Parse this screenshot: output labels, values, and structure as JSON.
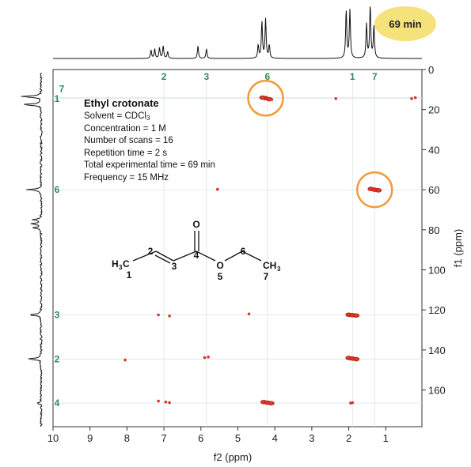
{
  "chart_data": {
    "type": "scatter",
    "xlabel": "f2 (ppm)",
    "ylabel": "f1 (ppm)",
    "xlim": [
      10,
      0
    ],
    "ylim": [
      0,
      180
    ],
    "x_ticks": [
      10,
      9,
      8,
      7,
      6,
      5,
      4,
      3,
      2,
      1
    ],
    "y_ticks": [
      0,
      20,
      40,
      60,
      80,
      100,
      120,
      140,
      160
    ],
    "grid": false,
    "badge": "69 min",
    "title": "Ethyl crotonate",
    "info": {
      "solvent_prefix": "Solvent = CDCl",
      "solvent_sub": "3",
      "lines": [
        "Concentration = 1 M",
        "Number of scans = 16",
        "Repetition time = 2 s",
        "Total experimental time = 69 min",
        "Frequency = 15 MHz"
      ]
    },
    "top_assignments": [
      {
        "label": "2",
        "x": 7.0
      },
      {
        "label": "3",
        "x": 5.85
      },
      {
        "label": "6",
        "x": 4.2
      },
      {
        "label": "1",
        "x": 1.9
      },
      {
        "label": "7",
        "x": 1.3
      }
    ],
    "left_assignments": [
      {
        "label": "1",
        "y": 14.5
      },
      {
        "label": "7",
        "y": 14.0
      },
      {
        "label": "6",
        "y": 60
      },
      {
        "label": "3",
        "y": 122.5
      },
      {
        "label": "2",
        "y": 144.5
      },
      {
        "label": "4",
        "y": 166.5
      }
    ],
    "peaks": [
      {
        "x": 4.25,
        "y": 14.3,
        "strong": true
      },
      {
        "x": 4.33,
        "y": 14.0,
        "strong": true
      },
      {
        "x": 4.15,
        "y": 14.8,
        "strong": true
      },
      {
        "x": 4.08,
        "y": 15.0,
        "strong": false
      },
      {
        "x": 2.35,
        "y": 14.5,
        "strong": false
      },
      {
        "x": 0.3,
        "y": 14.5,
        "strong": false
      },
      {
        "x": 0.2,
        "y": 14.0,
        "strong": false
      },
      {
        "x": 1.4,
        "y": 59.6,
        "strong": true
      },
      {
        "x": 1.3,
        "y": 60.0,
        "strong": true
      },
      {
        "x": 1.2,
        "y": 60.3,
        "strong": true
      },
      {
        "x": 5.55,
        "y": 59.8,
        "strong": false
      },
      {
        "x": 7.15,
        "y": 122.5,
        "strong": false
      },
      {
        "x": 6.85,
        "y": 123.0,
        "strong": false
      },
      {
        "x": 4.7,
        "y": 122.0,
        "strong": false
      },
      {
        "x": 2.0,
        "y": 122.4,
        "strong": true
      },
      {
        "x": 1.9,
        "y": 122.6,
        "strong": true
      },
      {
        "x": 1.8,
        "y": 122.8,
        "strong": true
      },
      {
        "x": 5.9,
        "y": 143.8,
        "strong": false
      },
      {
        "x": 5.8,
        "y": 143.5,
        "strong": false
      },
      {
        "x": 8.05,
        "y": 145.0,
        "strong": false
      },
      {
        "x": 2.0,
        "y": 144.0,
        "strong": true
      },
      {
        "x": 1.9,
        "y": 144.3,
        "strong": true
      },
      {
        "x": 1.8,
        "y": 144.6,
        "strong": true
      },
      {
        "x": 7.15,
        "y": 165.5,
        "strong": false
      },
      {
        "x": 6.95,
        "y": 166.0,
        "strong": false
      },
      {
        "x": 6.85,
        "y": 166.3,
        "strong": false
      },
      {
        "x": 4.3,
        "y": 166.0,
        "strong": true
      },
      {
        "x": 4.2,
        "y": 166.3,
        "strong": true
      },
      {
        "x": 4.1,
        "y": 166.6,
        "strong": true
      },
      {
        "x": 1.95,
        "y": 166.5,
        "strong": false
      },
      {
        "x": 1.9,
        "y": 166.3,
        "strong": false
      }
    ],
    "highlighted": [
      {
        "x": 4.25,
        "y": 14.3
      },
      {
        "x": 1.3,
        "y": 60.0
      }
    ],
    "proton_peaks": [
      {
        "shift": 7.35,
        "height": 0.16
      },
      {
        "shift": 7.25,
        "height": 0.18
      },
      {
        "shift": 7.12,
        "height": 0.2
      },
      {
        "shift": 7.02,
        "height": 0.24
      },
      {
        "shift": 6.9,
        "height": 0.13
      },
      {
        "shift": 6.08,
        "height": 0.24
      },
      {
        "shift": 5.85,
        "height": 0.18
      },
      {
        "shift": 4.45,
        "height": 0.25
      },
      {
        "shift": 4.35,
        "height": 0.7
      },
      {
        "shift": 4.25,
        "height": 0.75
      },
      {
        "shift": 4.15,
        "height": 0.25
      },
      {
        "shift": 2.07,
        "height": 0.92
      },
      {
        "shift": 1.97,
        "height": 0.92
      },
      {
        "shift": 1.52,
        "height": 0.65
      },
      {
        "shift": 1.42,
        "height": 1.0
      },
      {
        "shift": 1.32,
        "height": 0.62
      }
    ],
    "carbon_peaks": [
      {
        "shift": 13.5,
        "height": 0.9
      },
      {
        "shift": 17.5,
        "height": 0.82
      },
      {
        "shift": 60,
        "height": 0.6
      },
      {
        "shift": 75,
        "height": 0.4
      },
      {
        "shift": 77,
        "height": 0.45
      },
      {
        "shift": 79,
        "height": 0.38
      },
      {
        "shift": 122.5,
        "height": 0.58
      },
      {
        "shift": 144.5,
        "height": 0.6
      },
      {
        "shift": 166.5,
        "height": 0.18
      }
    ]
  },
  "molecule": {
    "o_top": "O",
    "o_ester": "O",
    "h3c_h": "H",
    "h3c_3": "3",
    "h3c_c": "C",
    "ch3_c": "CH",
    "ch3_3": "3",
    "numbers": [
      "1",
      "2",
      "3",
      "4",
      "5",
      "6",
      "7"
    ]
  }
}
